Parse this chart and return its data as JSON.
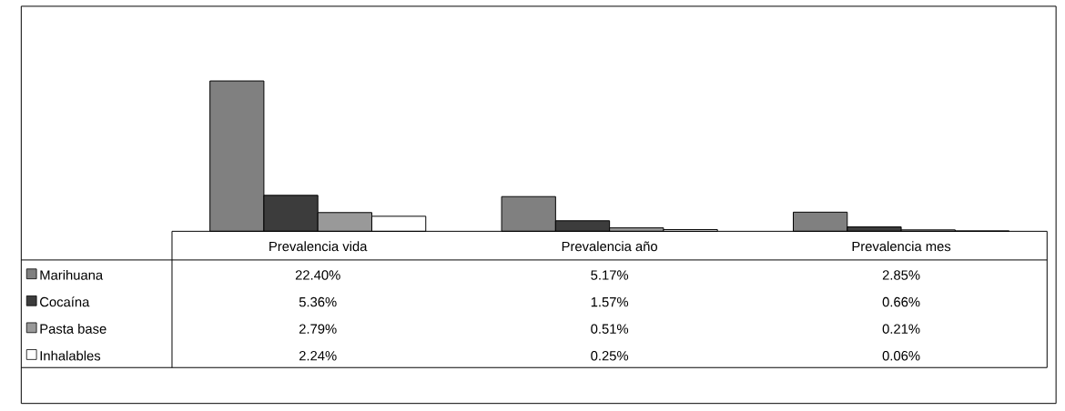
{
  "chart_data": {
    "type": "bar",
    "categories": [
      "Prevalencia vida",
      "Prevalencia año",
      "Prevalencia mes"
    ],
    "legend": "bottom",
    "series": [
      {
        "name": "Marihuana",
        "color": "#808080",
        "values": [
          22.4,
          5.17,
          2.85
        ],
        "value_labels": [
          "22.40%",
          "5.17%",
          "2.85%"
        ]
      },
      {
        "name": "Cocaína",
        "color": "#3c3c3c",
        "values": [
          5.36,
          1.57,
          0.66
        ],
        "value_labels": [
          "5.36%",
          "1.57%",
          "0.66%"
        ]
      },
      {
        "name": "Pasta base",
        "color": "#999999",
        "values": [
          2.79,
          0.51,
          0.21
        ],
        "value_labels": [
          "2.79%",
          "0.51%",
          "0.21%"
        ]
      },
      {
        "name": "Inhalables",
        "color": "#ffffff",
        "values": [
          2.24,
          0.25,
          0.06
        ],
        "value_labels": [
          "2.24%",
          "0.25%",
          "0.06%"
        ]
      }
    ]
  }
}
